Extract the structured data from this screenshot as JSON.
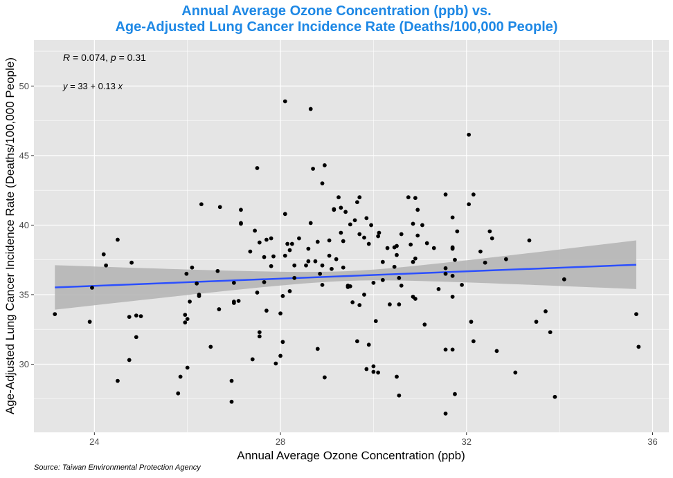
{
  "chart_data": {
    "type": "scatter",
    "title_line1": "Annual Average Ozone Concentration (ppb) vs.",
    "title_line2": "Age-Adjusted Lung Cancer Incidence Rate (Deaths/100,000 People)",
    "xlabel": "Annual Average Ozone Concentration (ppb)",
    "ylabel": "Age-Adjusted Lung Cancer Incidence Rate (Deaths/100,000 People)",
    "source": "Source: Taiwan Environmental Protection Agency",
    "xlim": [
      22.7,
      36.35
    ],
    "ylim": [
      25.1,
      53.3
    ],
    "xticks": [
      24,
      28,
      32,
      36
    ],
    "yticks": [
      30,
      35,
      40,
      45,
      50
    ],
    "grid": true,
    "annotations": {
      "r_label": "R",
      "r_text": " = 0.074, ",
      "p_label": "p",
      "p_text": " = 0.31",
      "eq_y": "y",
      "eq_text": " = 33 + 0.13 ",
      "eq_x": "x"
    },
    "fit": {
      "x": [
        23.15,
        35.65
      ],
      "y": [
        35.52,
        37.15
      ],
      "ci_lower": [
        33.9,
        35.4
      ],
      "ci_upper": [
        37.1,
        38.9
      ]
    },
    "colors": {
      "panel": "#e5e5e5",
      "grid": "#ffffff",
      "points": "#000000",
      "fit_line": "#2b4fff",
      "ribbon": "#b3b3b3",
      "title": "#1e88e5"
    },
    "points": [
      [
        23.15,
        33.6
      ],
      [
        23.9,
        33.05
      ],
      [
        23.95,
        35.5
      ],
      [
        24.2,
        37.9
      ],
      [
        24.25,
        37.1
      ],
      [
        24.5,
        38.95
      ],
      [
        24.5,
        28.8
      ],
      [
        24.75,
        33.4
      ],
      [
        24.75,
        30.3
      ],
      [
        24.8,
        37.3
      ],
      [
        24.9,
        33.5
      ],
      [
        24.9,
        31.95
      ],
      [
        25.0,
        33.45
      ],
      [
        25.8,
        27.9
      ],
      [
        25.85,
        29.1
      ],
      [
        25.95,
        33.0
      ],
      [
        25.95,
        33.55
      ],
      [
        25.98,
        36.5
      ],
      [
        26.0,
        29.75
      ],
      [
        26.0,
        33.25
      ],
      [
        26.05,
        34.5
      ],
      [
        26.1,
        36.95
      ],
      [
        26.2,
        35.8
      ],
      [
        26.25,
        35.0
      ],
      [
        26.25,
        34.9
      ],
      [
        26.3,
        41.5
      ],
      [
        26.5,
        31.25
      ],
      [
        26.65,
        36.7
      ],
      [
        26.68,
        33.95
      ],
      [
        26.7,
        41.3
      ],
      [
        26.95,
        27.3
      ],
      [
        26.95,
        28.8
      ],
      [
        27.0,
        34.4
      ],
      [
        27.0,
        34.5
      ],
      [
        27.0,
        35.85
      ],
      [
        27.1,
        34.55
      ],
      [
        27.15,
        40.1
      ],
      [
        27.15,
        40.15
      ],
      [
        27.15,
        41.1
      ],
      [
        27.35,
        38.1
      ],
      [
        27.4,
        30.35
      ],
      [
        27.45,
        39.6
      ],
      [
        27.5,
        44.1
      ],
      [
        27.5,
        35.15
      ],
      [
        27.55,
        38.75
      ],
      [
        27.55,
        32.3
      ],
      [
        27.55,
        32.0
      ],
      [
        27.65,
        35.9
      ],
      [
        27.65,
        37.7
      ],
      [
        27.7,
        33.85
      ],
      [
        27.7,
        38.95
      ],
      [
        27.8,
        39.05
      ],
      [
        27.8,
        37.05
      ],
      [
        27.85,
        37.75
      ],
      [
        27.9,
        30.05
      ],
      [
        28.0,
        33.65
      ],
      [
        28.0,
        30.6
      ],
      [
        28.05,
        31.6
      ],
      [
        28.05,
        34.9
      ],
      [
        28.1,
        37.8
      ],
      [
        28.1,
        48.9
      ],
      [
        28.1,
        40.8
      ],
      [
        28.15,
        38.65
      ],
      [
        28.2,
        35.25
      ],
      [
        28.2,
        38.2
      ],
      [
        28.25,
        38.65
      ],
      [
        28.3,
        36.2
      ],
      [
        28.3,
        37.1
      ],
      [
        28.4,
        39.05
      ],
      [
        28.55,
        37.1
      ],
      [
        28.6,
        38.3
      ],
      [
        28.6,
        37.4
      ],
      [
        28.65,
        48.35
      ],
      [
        28.65,
        40.15
      ],
      [
        28.7,
        44.05
      ],
      [
        28.75,
        37.4
      ],
      [
        28.8,
        31.1
      ],
      [
        28.8,
        38.8
      ],
      [
        28.85,
        36.5
      ],
      [
        28.9,
        37.1
      ],
      [
        28.9,
        43.0
      ],
      [
        28.9,
        35.7
      ],
      [
        28.95,
        44.3
      ],
      [
        28.95,
        29.05
      ],
      [
        29.05,
        38.9
      ],
      [
        29.05,
        37.8
      ],
      [
        29.1,
        36.85
      ],
      [
        29.15,
        41.15
      ],
      [
        29.15,
        41.1
      ],
      [
        29.2,
        37.55
      ],
      [
        29.25,
        42.0
      ],
      [
        29.3,
        39.45
      ],
      [
        29.3,
        41.25
      ],
      [
        29.35,
        38.85
      ],
      [
        29.35,
        36.95
      ],
      [
        29.4,
        40.95
      ],
      [
        29.45,
        35.55
      ],
      [
        29.45,
        35.65
      ],
      [
        29.5,
        40.05
      ],
      [
        29.5,
        35.6
      ],
      [
        29.55,
        34.45
      ],
      [
        29.6,
        40.35
      ],
      [
        29.65,
        31.65
      ],
      [
        29.65,
        41.65
      ],
      [
        29.7,
        39.35
      ],
      [
        29.7,
        42.0
      ],
      [
        29.7,
        34.25
      ],
      [
        29.8,
        39.1
      ],
      [
        29.8,
        35.0
      ],
      [
        29.85,
        40.5
      ],
      [
        29.85,
        29.65
      ],
      [
        29.9,
        38.65
      ],
      [
        29.9,
        31.4
      ],
      [
        29.95,
        40.0
      ],
      [
        30.0,
        35.85
      ],
      [
        30.0,
        29.85
      ],
      [
        30.0,
        29.45
      ],
      [
        30.05,
        33.1
      ],
      [
        30.1,
        39.2
      ],
      [
        30.1,
        29.4
      ],
      [
        30.12,
        39.45
      ],
      [
        30.2,
        36.05
      ],
      [
        30.2,
        37.35
      ],
      [
        30.3,
        38.35
      ],
      [
        30.35,
        34.3
      ],
      [
        30.45,
        37.0
      ],
      [
        30.45,
        38.4
      ],
      [
        30.5,
        29.1
      ],
      [
        30.5,
        38.5
      ],
      [
        30.5,
        37.85
      ],
      [
        30.55,
        27.75
      ],
      [
        30.55,
        34.3
      ],
      [
        30.55,
        36.2
      ],
      [
        30.6,
        39.35
      ],
      [
        30.6,
        35.65
      ],
      [
        30.75,
        42.0
      ],
      [
        30.8,
        38.6
      ],
      [
        30.85,
        40.1
      ],
      [
        30.85,
        37.35
      ],
      [
        30.85,
        34.85
      ],
      [
        30.9,
        34.7
      ],
      [
        30.9,
        41.95
      ],
      [
        30.9,
        37.6
      ],
      [
        30.95,
        39.25
      ],
      [
        30.95,
        41.1
      ],
      [
        31.05,
        40.0
      ],
      [
        31.1,
        32.85
      ],
      [
        31.15,
        38.7
      ],
      [
        31.3,
        38.35
      ],
      [
        31.4,
        35.4
      ],
      [
        31.55,
        42.2
      ],
      [
        31.55,
        26.45
      ],
      [
        31.55,
        31.05
      ],
      [
        31.55,
        36.5
      ],
      [
        31.55,
        36.9
      ],
      [
        31.7,
        40.55
      ],
      [
        31.7,
        38.4
      ],
      [
        31.7,
        38.3
      ],
      [
        31.7,
        36.35
      ],
      [
        31.7,
        34.85
      ],
      [
        31.7,
        31.05
      ],
      [
        31.75,
        37.5
      ],
      [
        31.75,
        27.85
      ],
      [
        31.8,
        39.55
      ],
      [
        31.9,
        35.7
      ],
      [
        32.05,
        41.5
      ],
      [
        32.05,
        46.5
      ],
      [
        32.1,
        33.05
      ],
      [
        32.15,
        42.2
      ],
      [
        32.15,
        31.65
      ],
      [
        32.3,
        38.1
      ],
      [
        32.4,
        37.3
      ],
      [
        32.5,
        39.55
      ],
      [
        32.55,
        39.05
      ],
      [
        32.65,
        30.95
      ],
      [
        32.85,
        37.55
      ],
      [
        33.05,
        29.4
      ],
      [
        33.35,
        38.9
      ],
      [
        33.5,
        33.05
      ],
      [
        33.7,
        33.8
      ],
      [
        33.8,
        32.3
      ],
      [
        33.9,
        27.65
      ],
      [
        34.1,
        36.1
      ],
      [
        35.65,
        33.6
      ],
      [
        35.7,
        31.25
      ]
    ]
  }
}
